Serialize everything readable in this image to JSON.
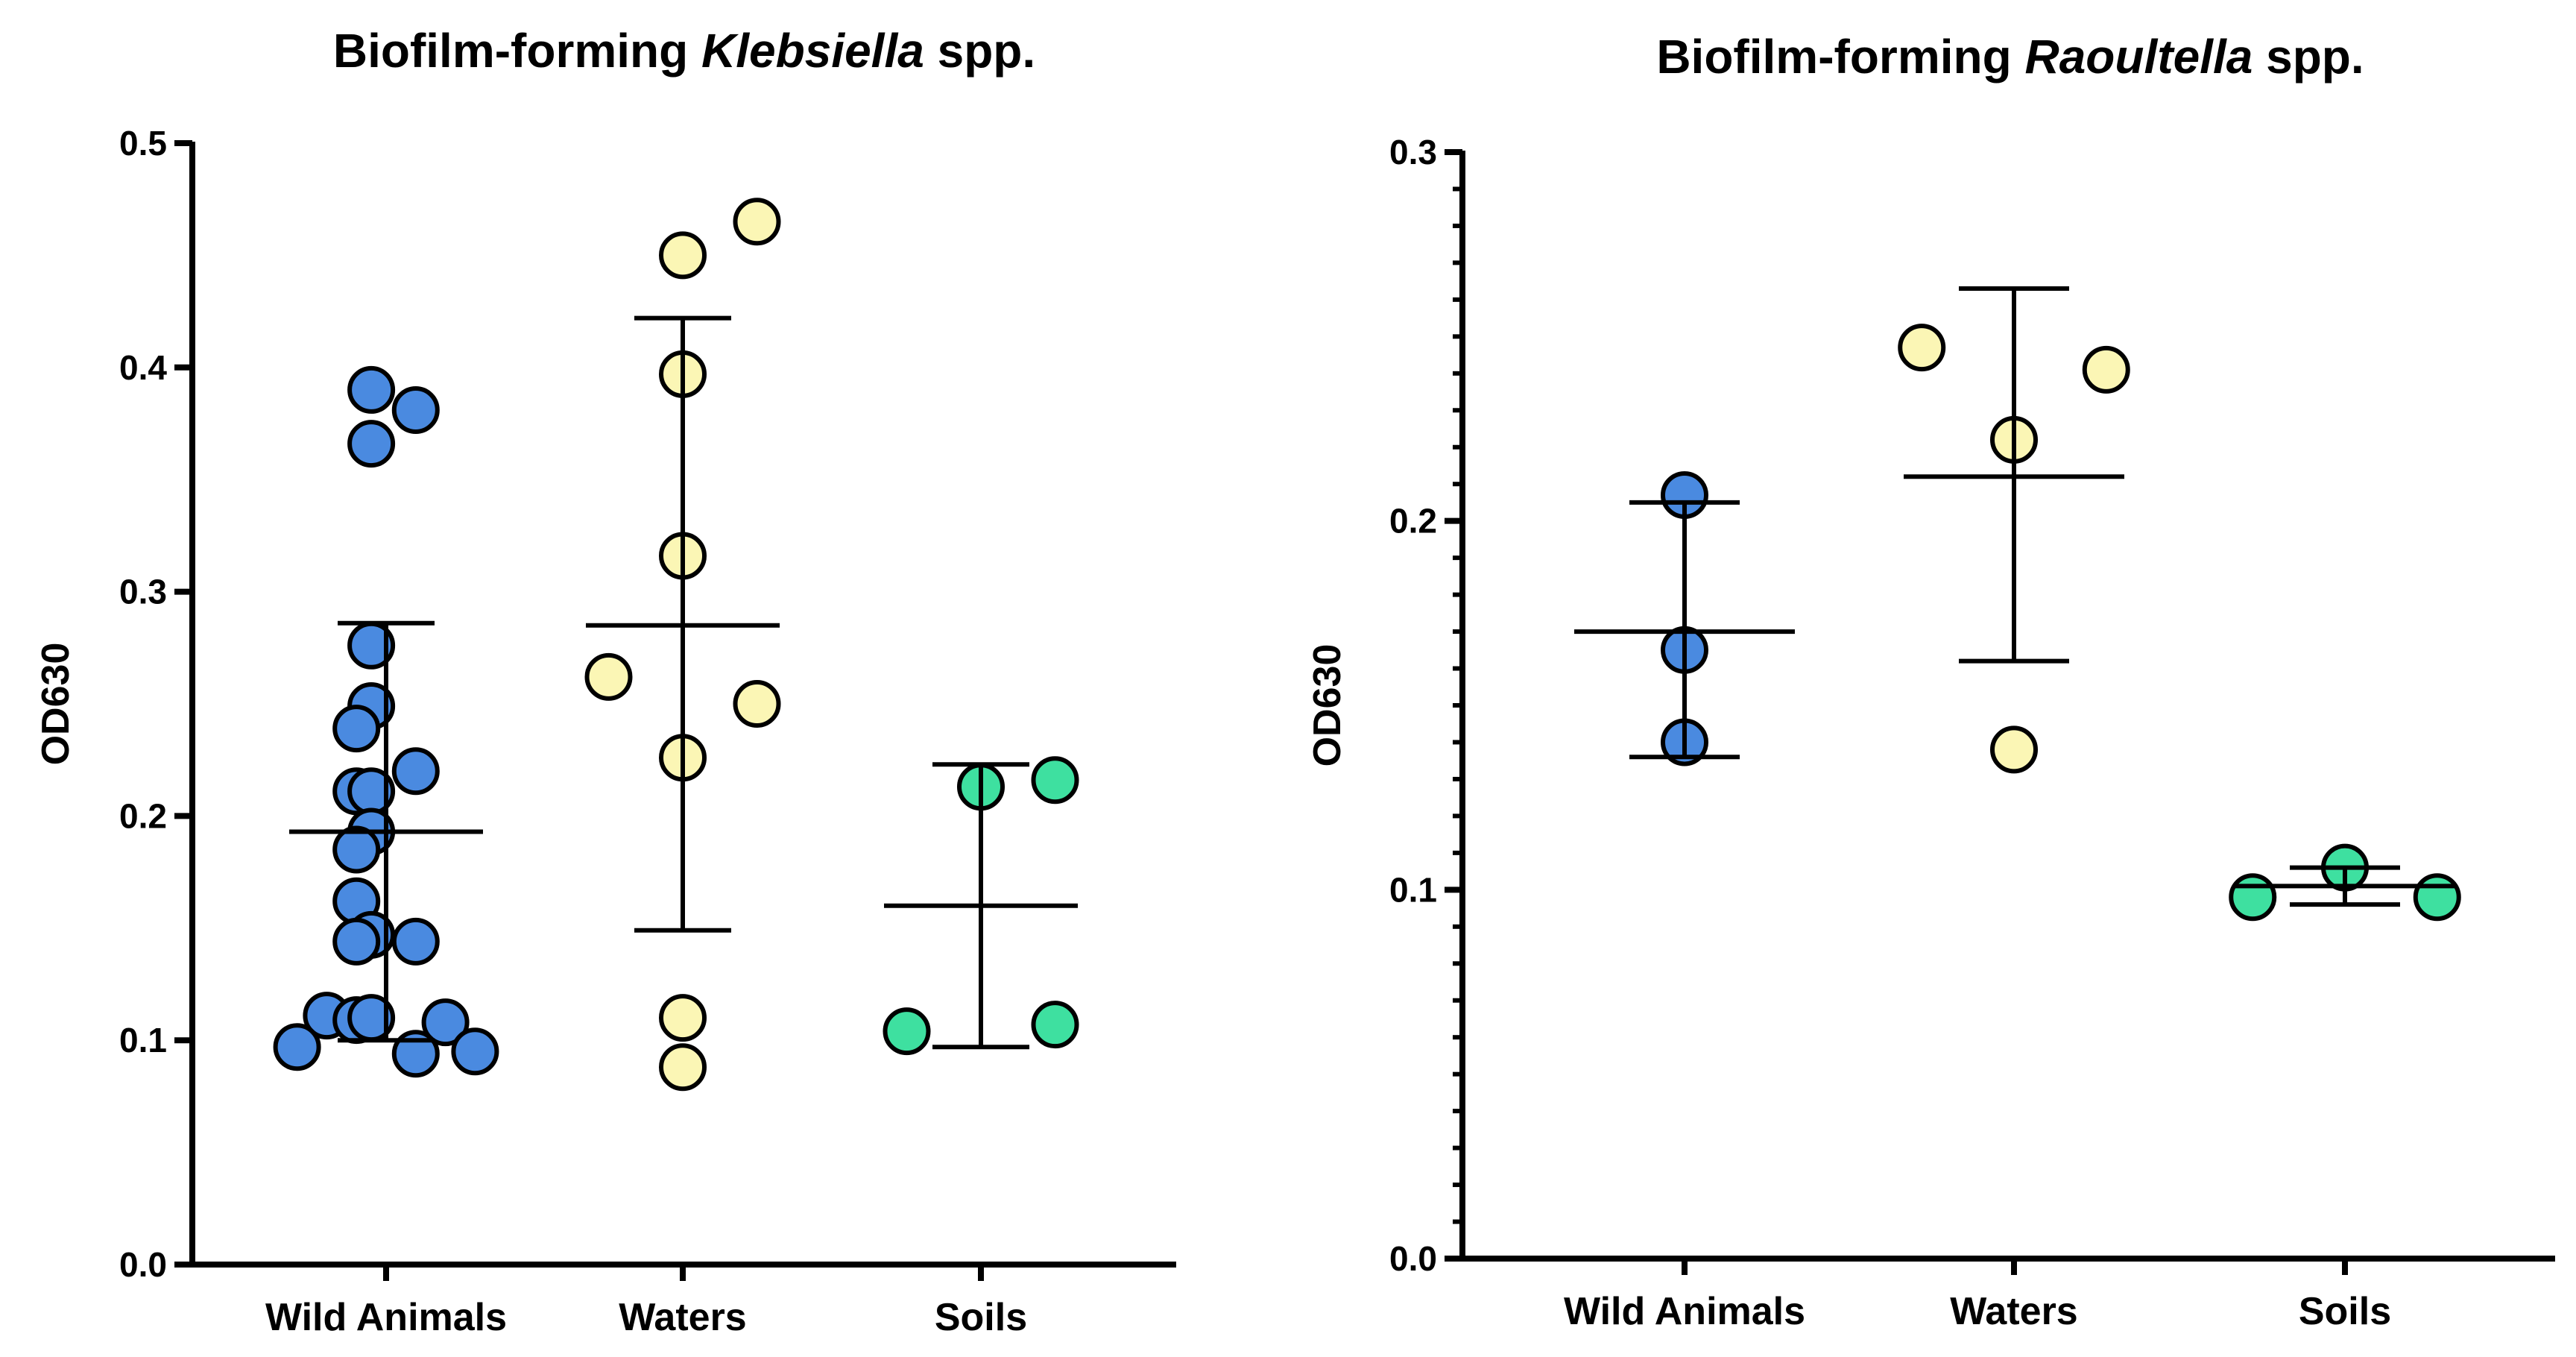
{
  "chart_data": [
    {
      "type": "scatter",
      "title_prefix": "Biofilm-forming ",
      "title_italic": "Klebsiella",
      "title_suffix": " spp.",
      "ylabel": "OD630",
      "ylim": [
        0.0,
        0.5
      ],
      "yticks": [
        0.0,
        0.1,
        0.2,
        0.3,
        0.4,
        0.5
      ],
      "ytick_labels": [
        "0.0",
        "0.1",
        "0.2",
        "0.3",
        "0.4",
        "0.5"
      ],
      "minor_ticks": false,
      "categories": [
        "Wild Animals",
        "Waters",
        "Soils"
      ],
      "groups": [
        {
          "category": "Wild Animals",
          "color": "#4a8ae0",
          "mean": 0.193,
          "error_low": 0.1,
          "error_high": 0.286,
          "points": [
            {
              "offset": -0.05,
              "y": 0.39
            },
            {
              "offset": 0.1,
              "y": 0.381
            },
            {
              "offset": -0.05,
              "y": 0.366
            },
            {
              "offset": -0.05,
              "y": 0.276
            },
            {
              "offset": -0.05,
              "y": 0.249
            },
            {
              "offset": -0.1,
              "y": 0.239
            },
            {
              "offset": 0.1,
              "y": 0.22
            },
            {
              "offset": -0.1,
              "y": 0.211
            },
            {
              "offset": -0.05,
              "y": 0.211
            },
            {
              "offset": -0.05,
              "y": 0.193
            },
            {
              "offset": -0.1,
              "y": 0.185
            },
            {
              "offset": -0.1,
              "y": 0.162
            },
            {
              "offset": -0.05,
              "y": 0.147
            },
            {
              "offset": -0.1,
              "y": 0.144
            },
            {
              "offset": 0.1,
              "y": 0.144
            },
            {
              "offset": -0.2,
              "y": 0.111
            },
            {
              "offset": -0.1,
              "y": 0.109
            },
            {
              "offset": -0.05,
              "y": 0.11
            },
            {
              "offset": 0.2,
              "y": 0.108
            },
            {
              "offset": -0.3,
              "y": 0.097
            },
            {
              "offset": 0.1,
              "y": 0.094
            },
            {
              "offset": 0.3,
              "y": 0.095
            }
          ]
        },
        {
          "category": "Waters",
          "color": "#fbf6b5",
          "mean": 0.285,
          "error_low": 0.149,
          "error_high": 0.422,
          "points": [
            {
              "offset": 0.25,
              "y": 0.465
            },
            {
              "offset": 0.0,
              "y": 0.45
            },
            {
              "offset": 0.0,
              "y": 0.397
            },
            {
              "offset": 0.0,
              "y": 0.316
            },
            {
              "offset": -0.25,
              "y": 0.262
            },
            {
              "offset": 0.25,
              "y": 0.25
            },
            {
              "offset": 0.0,
              "y": 0.226
            },
            {
              "offset": 0.0,
              "y": 0.11
            },
            {
              "offset": 0.0,
              "y": 0.088
            }
          ]
        },
        {
          "category": "Soils",
          "color": "#3ee0a0",
          "mean": 0.16,
          "error_low": 0.097,
          "error_high": 0.223,
          "points": [
            {
              "offset": 0.0,
              "y": 0.213
            },
            {
              "offset": 0.25,
              "y": 0.216
            },
            {
              "offset": 0.25,
              "y": 0.107
            },
            {
              "offset": -0.25,
              "y": 0.104
            }
          ]
        }
      ]
    },
    {
      "type": "scatter",
      "title_prefix": "Biofilm-forming ",
      "title_italic": "Raoultella",
      "title_suffix": " spp.",
      "ylabel": "OD630",
      "ylim": [
        0.0,
        0.3
      ],
      "yticks": [
        0.0,
        0.1,
        0.2,
        0.3
      ],
      "ytick_labels": [
        "0.0",
        "0.1",
        "0.2",
        "0.3"
      ],
      "minor_ticks": true,
      "categories": [
        "Wild Animals",
        "Waters",
        "Soils"
      ],
      "groups": [
        {
          "category": "Wild Animals",
          "color": "#4a8ae0",
          "mean": 0.17,
          "error_low": 0.136,
          "error_high": 0.205,
          "points": [
            {
              "offset": 0.0,
              "y": 0.207
            },
            {
              "offset": 0.0,
              "y": 0.165
            },
            {
              "offset": 0.0,
              "y": 0.14
            }
          ]
        },
        {
          "category": "Waters",
          "color": "#fbf6b5",
          "mean": 0.212,
          "error_low": 0.162,
          "error_high": 0.263,
          "points": [
            {
              "offset": -0.28,
              "y": 0.247
            },
            {
              "offset": 0.28,
              "y": 0.241
            },
            {
              "offset": 0.0,
              "y": 0.222
            },
            {
              "offset": 0.0,
              "y": 0.138
            }
          ]
        },
        {
          "category": "Soils",
          "color": "#3ee0a0",
          "mean": 0.101,
          "error_low": 0.096,
          "error_high": 0.106,
          "points": [
            {
              "offset": 0.0,
              "y": 0.106
            },
            {
              "offset": -0.28,
              "y": 0.098
            },
            {
              "offset": 0.28,
              "y": 0.098
            }
          ]
        }
      ]
    }
  ]
}
